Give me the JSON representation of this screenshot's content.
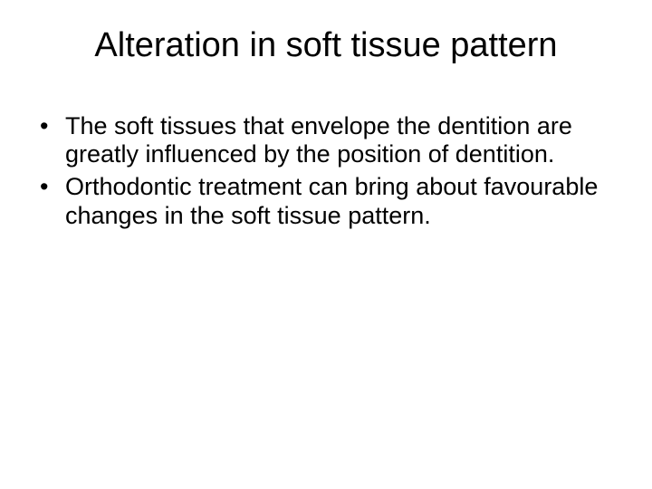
{
  "slide": {
    "title": "Alteration in soft tissue pattern",
    "bullets": [
      "The soft tissues that envelope the dentition are greatly influenced by the position of dentition.",
      "Orthodontic treatment can bring about favourable changes in the soft tissue pattern."
    ],
    "title_fontsize": 38,
    "body_fontsize": 27,
    "text_color": "#000000",
    "background_color": "#ffffff",
    "font_family": "Arial"
  }
}
